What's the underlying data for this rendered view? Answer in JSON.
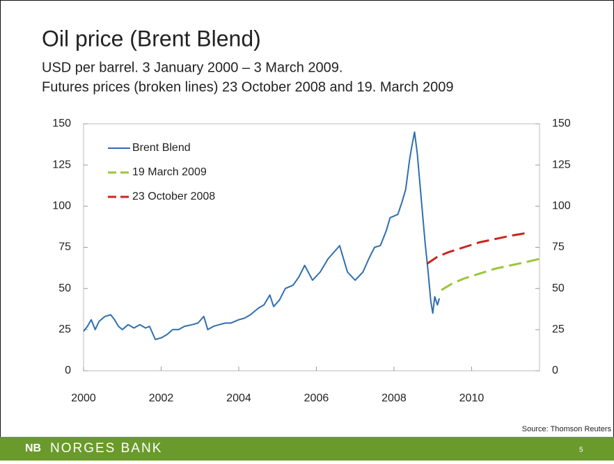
{
  "chart_data": {
    "type": "line",
    "title": "Oil price (Brent Blend)",
    "subtitle": [
      "USD per barrel. 3 January 2000 – 3 March 2009.",
      "Futures prices (broken lines) 23 October 2008 and 19. March 2009"
    ],
    "xlim": [
      2000,
      2011.75
    ],
    "xticks": [
      2000,
      2002,
      2004,
      2006,
      2008,
      2010
    ],
    "ylim": [
      0,
      150
    ],
    "yticks": [
      0,
      25,
      50,
      75,
      100,
      125,
      150
    ],
    "y2lim": [
      0,
      150
    ],
    "y2ticks": [
      0,
      25,
      50,
      75,
      100,
      125,
      150
    ],
    "grid": false,
    "legend": "upper left",
    "source": "Source: Thomson Reuters",
    "series": [
      {
        "name": "Brent Blend",
        "color": "#2f6eb0",
        "dash": false,
        "x": [
          2000.0,
          2000.1,
          2000.2,
          2000.3,
          2000.4,
          2000.55,
          2000.7,
          2000.8,
          2000.9,
          2001.0,
          2001.15,
          2001.3,
          2001.45,
          2001.6,
          2001.7,
          2001.85,
          2002.0,
          2002.15,
          2002.3,
          2002.45,
          2002.6,
          2002.8,
          2002.95,
          2003.1,
          2003.2,
          2003.35,
          2003.5,
          2003.65,
          2003.8,
          2004.0,
          2004.15,
          2004.3,
          2004.5,
          2004.65,
          2004.8,
          2004.9,
          2005.05,
          2005.2,
          2005.4,
          2005.55,
          2005.7,
          2005.9,
          2006.1,
          2006.3,
          2006.45,
          2006.6,
          2006.8,
          2007.0,
          2007.2,
          2007.35,
          2007.5,
          2007.65,
          2007.8,
          2007.9,
          2008.1,
          2008.2,
          2008.3,
          2008.4,
          2008.45,
          2008.53,
          2008.6,
          2008.7,
          2008.8,
          2008.88,
          2008.95,
          2009.0,
          2009.05,
          2009.12,
          2009.17
        ],
        "values": [
          24,
          27,
          31,
          25,
          30,
          33,
          34,
          31,
          27,
          25,
          28,
          26,
          28,
          26,
          27,
          19,
          20,
          22,
          25,
          25,
          27,
          28,
          29,
          33,
          25,
          27,
          28,
          29,
          29,
          31,
          32,
          34,
          38,
          40,
          46,
          39,
          43,
          50,
          52,
          57,
          64,
          55,
          60,
          68,
          72,
          76,
          60,
          55,
          60,
          68,
          75,
          76,
          85,
          93,
          95,
          102,
          110,
          128,
          135,
          145,
          132,
          105,
          78,
          60,
          42,
          35,
          45,
          40,
          44
        ]
      },
      {
        "name": "19 March 2009",
        "color": "#9cc43b",
        "dash": true,
        "x": [
          2009.22,
          2009.5,
          2009.8,
          2010.2,
          2010.6,
          2011.0,
          2011.4,
          2011.75
        ],
        "values": [
          49,
          53,
          56,
          59,
          62,
          64,
          66,
          68
        ]
      },
      {
        "name": "23 October 2008",
        "color": "#c8261d",
        "dash": true,
        "x": [
          2008.85,
          2009.1,
          2009.4,
          2009.8,
          2010.2,
          2010.6,
          2011.0,
          2011.5
        ],
        "values": [
          65,
          69,
          72,
          75,
          78,
          80,
          82,
          84
        ]
      }
    ]
  },
  "footer": {
    "logo": "NB",
    "bank": "NORGES BANK",
    "page": "5"
  }
}
